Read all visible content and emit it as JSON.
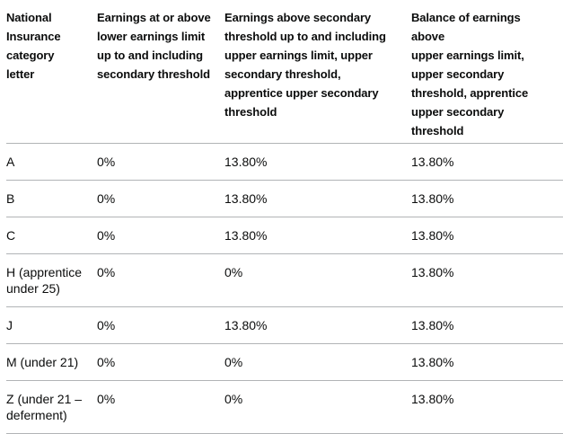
{
  "chart_data": {
    "type": "table",
    "columns": [
      "National\nInsurance\ncategory\nletter",
      "Earnings at or above\nlower earnings limit\nup to and including\nsecondary threshold",
      "Earnings above secondary\nthreshold up to and including\nupper earnings limit, upper\nsecondary threshold,\napprentice upper secondary\nthreshold",
      "Balance of earnings above\nupper earnings limit,\nupper secondary\nthreshold, apprentice\nupper secondary\nthreshold"
    ],
    "rows": [
      [
        "A",
        "0%",
        "13.80%",
        "13.80%"
      ],
      [
        "B",
        "0%",
        "13.80%",
        "13.80%"
      ],
      [
        "C",
        "0%",
        "13.80%",
        "13.80%"
      ],
      [
        "H (apprentice\nunder 25)",
        "0%",
        "0%",
        "13.80%"
      ],
      [
        "J",
        "0%",
        "13.80%",
        "13.80%"
      ],
      [
        "M (under 21)",
        "0%",
        "0%",
        "13.80%"
      ],
      [
        "Z (under 21 –\ndeferment)",
        "0%",
        "0%",
        "13.80%"
      ]
    ]
  },
  "colors": {
    "text": "#0b0c0c",
    "border": "#b1b4b6",
    "background": "#ffffff"
  }
}
